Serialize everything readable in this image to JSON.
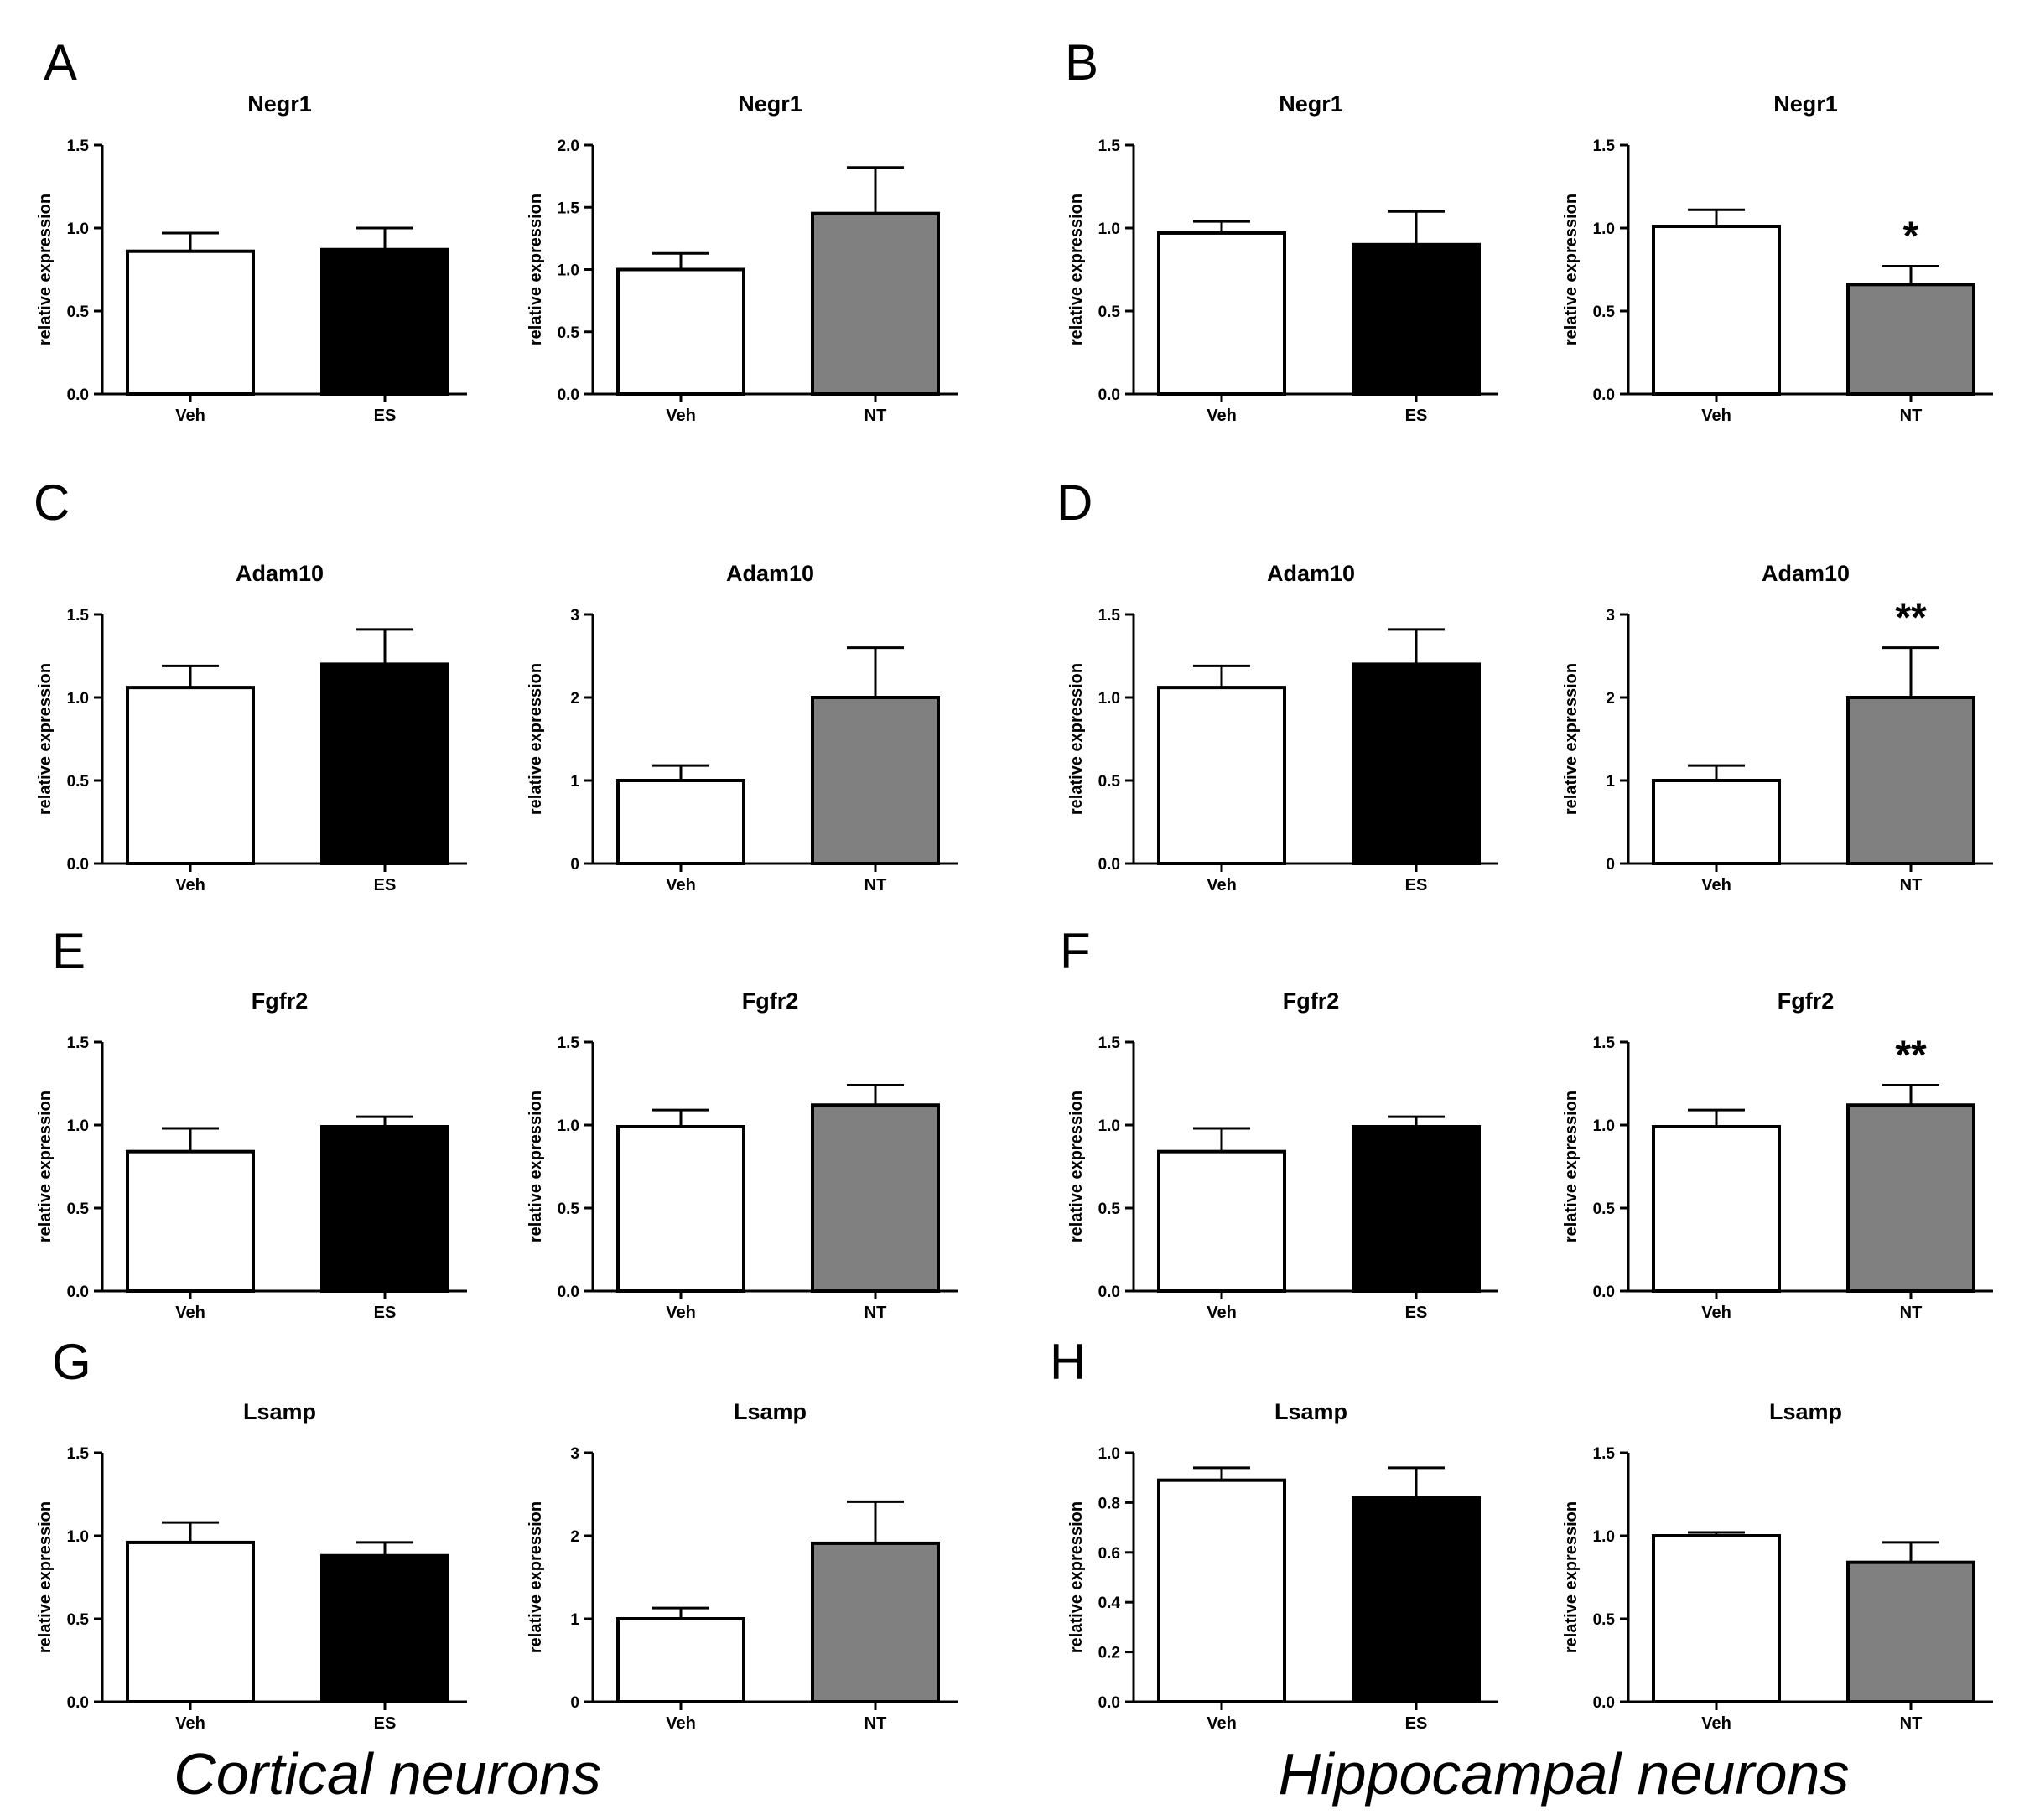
{
  "colors": {
    "veh": "#ffffff",
    "es": "#000000",
    "nt": "#808080",
    "axis": "#000000",
    "background": "#ffffff"
  },
  "ylabel": "relative expression",
  "captions": {
    "left": "Cortical neurons",
    "right": "Hippocampal neurons"
  },
  "panels": [
    {
      "letter": "A"
    },
    {
      "letter": "B"
    },
    {
      "letter": "C"
    },
    {
      "letter": "D"
    },
    {
      "letter": "E"
    },
    {
      "letter": "F"
    },
    {
      "letter": "G"
    },
    {
      "letter": "H"
    }
  ],
  "chart_data": [
    {
      "panel": "A",
      "type": "bar",
      "title": "Negr1",
      "ylabel": "relative expression",
      "categories": [
        "Veh",
        "ES"
      ],
      "values": [
        0.86,
        0.87
      ],
      "errors": [
        0.11,
        0.13
      ],
      "yticks": [
        "0.0",
        "0.5",
        "1.0",
        "1.5"
      ],
      "ylim": [
        0,
        1.5
      ],
      "bar_colors": [
        "#ffffff",
        "#000000"
      ],
      "annotation": ""
    },
    {
      "panel": "A",
      "type": "bar",
      "title": "Negr1",
      "ylabel": "relative expression",
      "categories": [
        "Veh",
        "NT"
      ],
      "values": [
        1.0,
        1.45
      ],
      "errors": [
        0.13,
        0.37
      ],
      "yticks": [
        "0.0",
        "0.5",
        "1.0",
        "1.5",
        "2.0"
      ],
      "ylim": [
        0,
        2.0
      ],
      "bar_colors": [
        "#ffffff",
        "#808080"
      ],
      "annotation": ""
    },
    {
      "panel": "B",
      "type": "bar",
      "title": "Negr1",
      "ylabel": "relative expression",
      "categories": [
        "Veh",
        "ES"
      ],
      "values": [
        0.97,
        0.9
      ],
      "errors": [
        0.07,
        0.2
      ],
      "yticks": [
        "0.0",
        "0.5",
        "1.0",
        "1.5"
      ],
      "ylim": [
        0,
        1.5
      ],
      "bar_colors": [
        "#ffffff",
        "#000000"
      ],
      "annotation": ""
    },
    {
      "panel": "B",
      "type": "bar",
      "title": "Negr1",
      "ylabel": "relative expression",
      "categories": [
        "Veh",
        "NT"
      ],
      "values": [
        1.01,
        0.66
      ],
      "errors": [
        0.1,
        0.11
      ],
      "yticks": [
        "0.0",
        "0.5",
        "1.0",
        "1.5"
      ],
      "ylim": [
        0,
        1.5
      ],
      "bar_colors": [
        "#ffffff",
        "#808080"
      ],
      "annotation": "*"
    },
    {
      "panel": "C",
      "type": "bar",
      "title": "Adam10",
      "ylabel": "relative expression",
      "categories": [
        "Veh",
        "ES"
      ],
      "values": [
        1.06,
        1.2
      ],
      "errors": [
        0.13,
        0.21
      ],
      "yticks": [
        "0.0",
        "0.5",
        "1.0",
        "1.5"
      ],
      "ylim": [
        0,
        1.5
      ],
      "bar_colors": [
        "#ffffff",
        "#000000"
      ],
      "annotation": ""
    },
    {
      "panel": "C",
      "type": "bar",
      "title": "Adam10",
      "ylabel": "relative expression",
      "categories": [
        "Veh",
        "NT"
      ],
      "values": [
        1.0,
        2.0
      ],
      "errors": [
        0.18,
        0.6
      ],
      "yticks": [
        "0",
        "1",
        "2",
        "3"
      ],
      "ylim": [
        0,
        3
      ],
      "bar_colors": [
        "#ffffff",
        "#808080"
      ],
      "annotation": ""
    },
    {
      "panel": "D",
      "type": "bar",
      "title": "Adam10",
      "ylabel": "relative expression",
      "categories": [
        "Veh",
        "ES"
      ],
      "values": [
        1.06,
        1.2
      ],
      "errors": [
        0.13,
        0.21
      ],
      "yticks": [
        "0.0",
        "0.5",
        "1.0",
        "1.5"
      ],
      "ylim": [
        0,
        1.5
      ],
      "bar_colors": [
        "#ffffff",
        "#000000"
      ],
      "annotation": ""
    },
    {
      "panel": "D",
      "type": "bar",
      "title": "Adam10",
      "ylabel": "relative expression",
      "categories": [
        "Veh",
        "NT"
      ],
      "values": [
        1.0,
        2.0
      ],
      "errors": [
        0.18,
        0.6
      ],
      "yticks": [
        "0",
        "1",
        "2",
        "3"
      ],
      "ylim": [
        0,
        3
      ],
      "bar_colors": [
        "#ffffff",
        "#808080"
      ],
      "annotation": "**"
    },
    {
      "panel": "E",
      "type": "bar",
      "title": "Fgfr2",
      "ylabel": "relative expression",
      "categories": [
        "Veh",
        "ES"
      ],
      "values": [
        0.84,
        0.99
      ],
      "errors": [
        0.14,
        0.06
      ],
      "yticks": [
        "0.0",
        "0.5",
        "1.0",
        "1.5"
      ],
      "ylim": [
        0,
        1.5
      ],
      "bar_colors": [
        "#ffffff",
        "#000000"
      ],
      "annotation": ""
    },
    {
      "panel": "E",
      "type": "bar",
      "title": "Fgfr2",
      "ylabel": "relative expression",
      "categories": [
        "Veh",
        "NT"
      ],
      "values": [
        0.99,
        1.12
      ],
      "errors": [
        0.1,
        0.12
      ],
      "yticks": [
        "0.0",
        "0.5",
        "1.0",
        "1.5"
      ],
      "ylim": [
        0,
        1.5
      ],
      "bar_colors": [
        "#ffffff",
        "#808080"
      ],
      "annotation": ""
    },
    {
      "panel": "F",
      "type": "bar",
      "title": "Fgfr2",
      "ylabel": "relative expression",
      "categories": [
        "Veh",
        "ES"
      ],
      "values": [
        0.84,
        0.99
      ],
      "errors": [
        0.14,
        0.06
      ],
      "yticks": [
        "0.0",
        "0.5",
        "1.0",
        "1.5"
      ],
      "ylim": [
        0,
        1.5
      ],
      "bar_colors": [
        "#ffffff",
        "#000000"
      ],
      "annotation": ""
    },
    {
      "panel": "F",
      "type": "bar",
      "title": "Fgfr2",
      "ylabel": "relative expression",
      "categories": [
        "Veh",
        "NT"
      ],
      "values": [
        0.99,
        1.12
      ],
      "errors": [
        0.1,
        0.12
      ],
      "yticks": [
        "0.0",
        "0.5",
        "1.0",
        "1.5"
      ],
      "ylim": [
        0,
        1.5
      ],
      "bar_colors": [
        "#ffffff",
        "#808080"
      ],
      "annotation": "**"
    },
    {
      "panel": "G",
      "type": "bar",
      "title": "Lsamp",
      "ylabel": "relative expression",
      "categories": [
        "Veh",
        "ES"
      ],
      "values": [
        0.96,
        0.88
      ],
      "errors": [
        0.12,
        0.08
      ],
      "yticks": [
        "0.0",
        "0.5",
        "1.0",
        "1.5"
      ],
      "ylim": [
        0,
        1.5
      ],
      "bar_colors": [
        "#ffffff",
        "#000000"
      ],
      "annotation": ""
    },
    {
      "panel": "G",
      "type": "bar",
      "title": "Lsamp",
      "ylabel": "relative expression",
      "categories": [
        "Veh",
        "NT"
      ],
      "values": [
        1.0,
        1.91
      ],
      "errors": [
        0.13,
        0.5
      ],
      "yticks": [
        "0",
        "1",
        "2",
        "3"
      ],
      "ylim": [
        0,
        3
      ],
      "bar_colors": [
        "#ffffff",
        "#808080"
      ],
      "annotation": ""
    },
    {
      "panel": "H",
      "type": "bar",
      "title": "Lsamp",
      "ylabel": "relative expression",
      "categories": [
        "Veh",
        "ES"
      ],
      "values": [
        0.89,
        0.82
      ],
      "errors": [
        0.05,
        0.12
      ],
      "yticks": [
        "0.0",
        "0.2",
        "0.4",
        "0.6",
        "0.8",
        "1.0"
      ],
      "ylim": [
        0,
        1.0
      ],
      "bar_colors": [
        "#ffffff",
        "#000000"
      ],
      "annotation": ""
    },
    {
      "panel": "H",
      "type": "bar",
      "title": "Lsamp",
      "ylabel": "relative expression",
      "categories": [
        "Veh",
        "NT"
      ],
      "values": [
        1.0,
        0.84
      ],
      "errors": [
        0.02,
        0.12
      ],
      "yticks": [
        "0.0",
        "0.5",
        "1.0",
        "1.5"
      ],
      "ylim": [
        0,
        1.5
      ],
      "bar_colors": [
        "#ffffff",
        "#808080"
      ],
      "annotation": ""
    }
  ]
}
